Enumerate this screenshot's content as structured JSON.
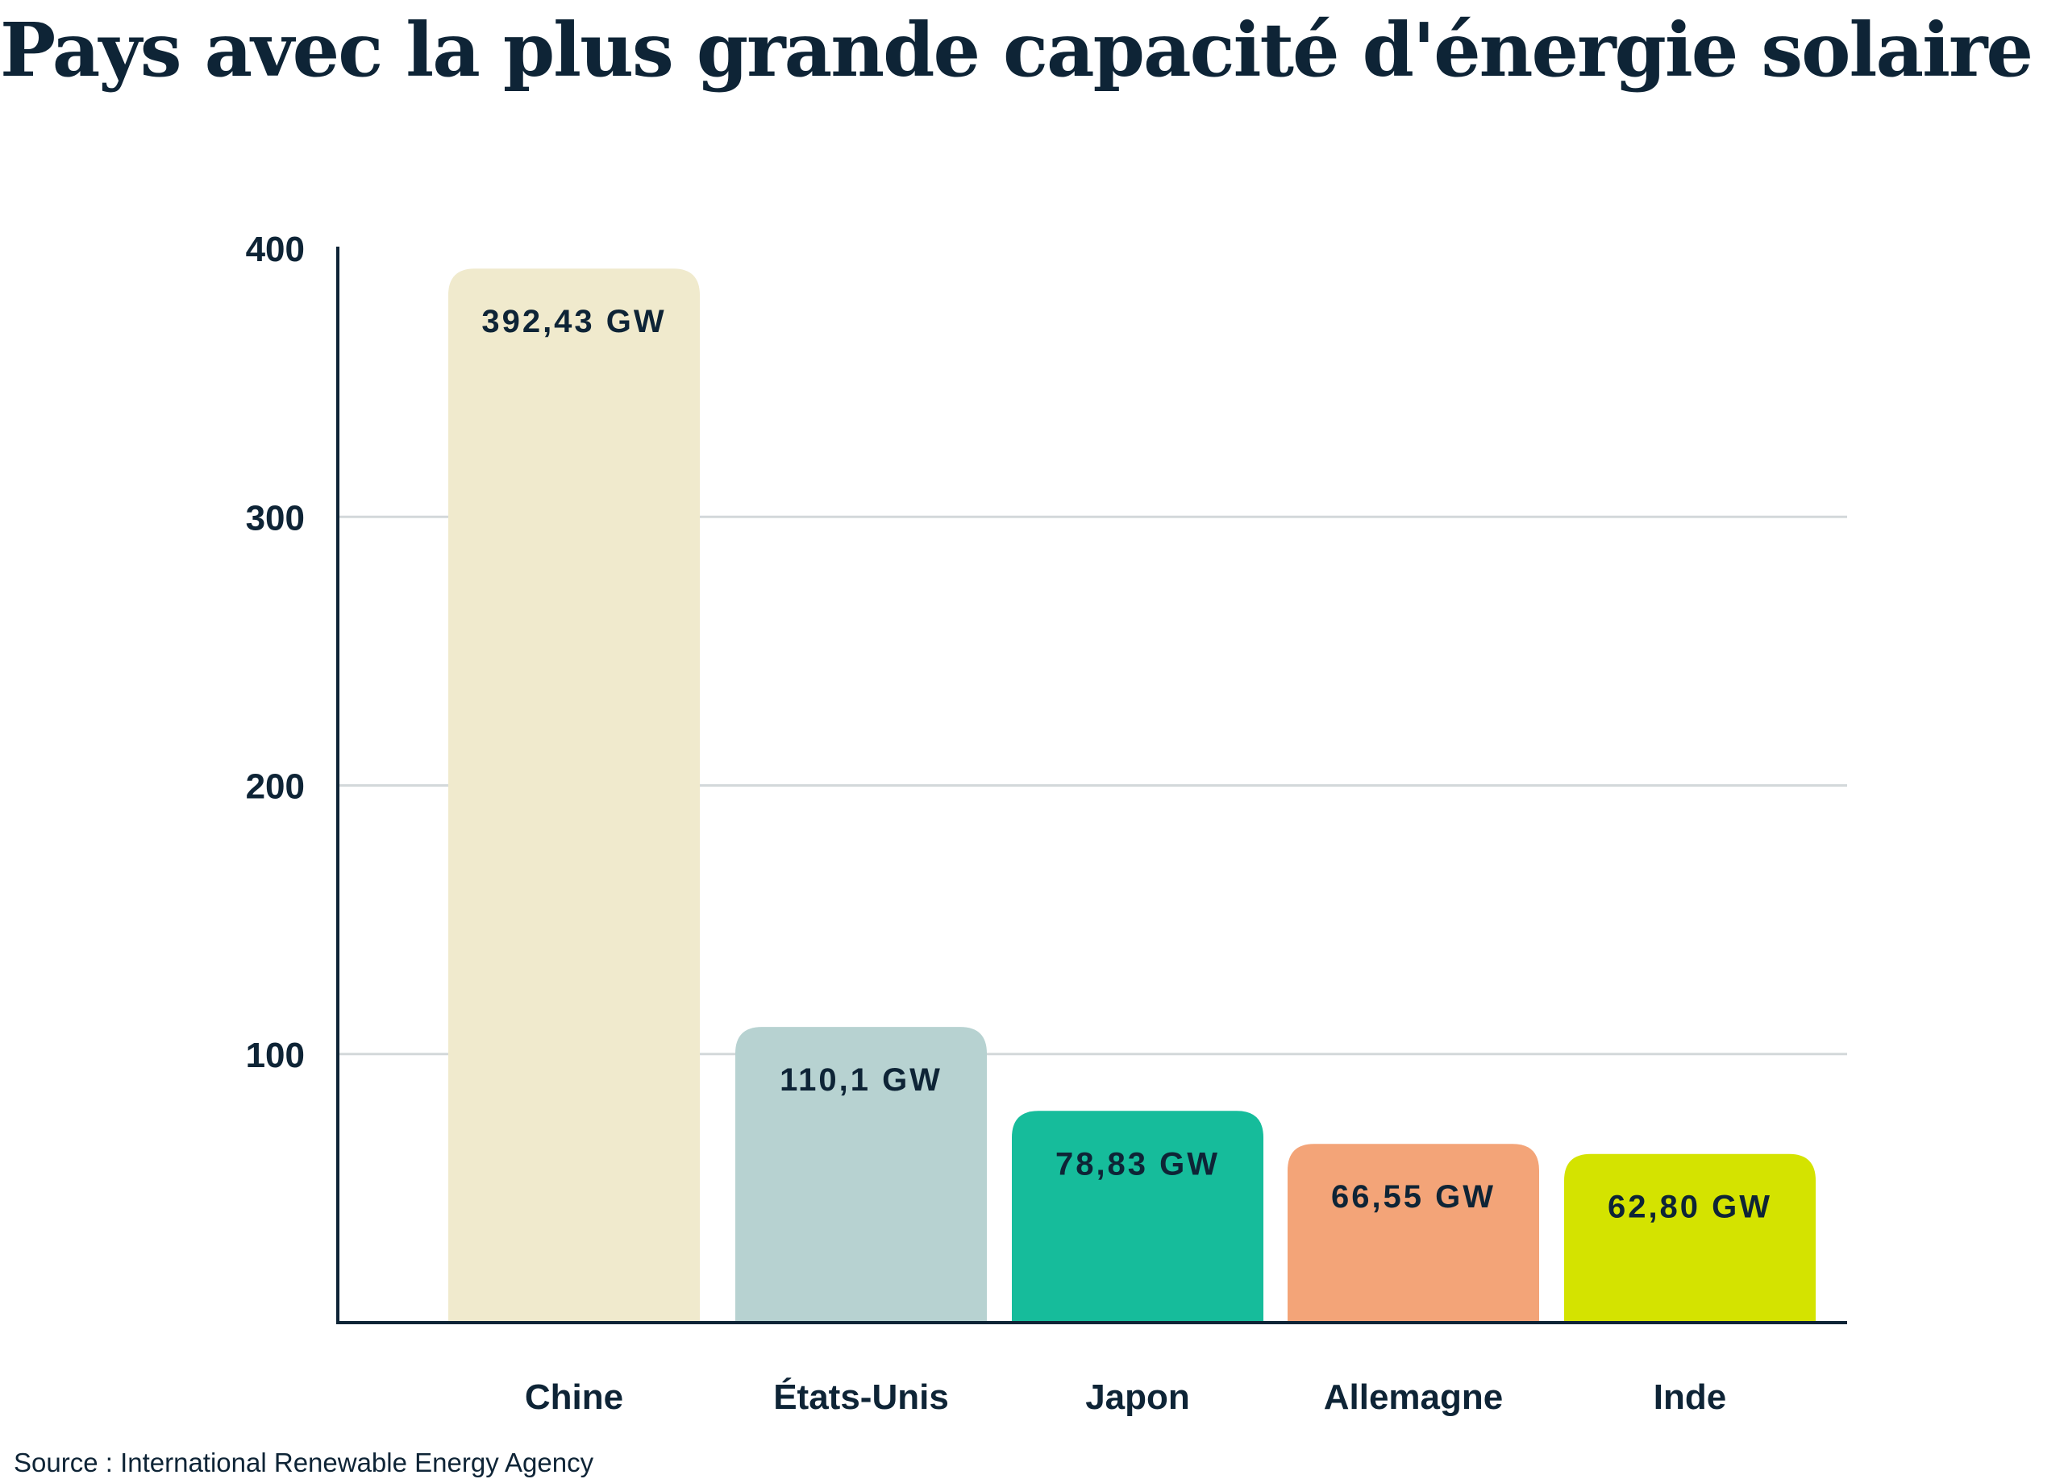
{
  "chart_data": {
    "type": "bar",
    "title": "Pays avec la plus grande capacité d'énergie solaire",
    "categories": [
      "Chine",
      "États-Unis",
      "Japon",
      "Allemagne",
      "Inde"
    ],
    "values": [
      392.43,
      110.1,
      78.83,
      66.55,
      62.8
    ],
    "data_labels": [
      "392,43 GW",
      "110,1 GW",
      "78,83 GW",
      "66,55 GW",
      "62,80 GW"
    ],
    "colors": [
      "#f0eacd",
      "#b7d2d1",
      "#16bc9b",
      "#f3a478",
      "#d4e300"
    ],
    "xlabel": "",
    "ylabel": "",
    "ylim": [
      0,
      400
    ],
    "yticks": [
      "100",
      "200",
      "300",
      "400"
    ],
    "ytick_values": [
      100,
      200,
      300,
      400
    ],
    "grid": true,
    "grid_color": "#d3d8da",
    "axis_color": "#0e2436",
    "source": "Source : International Renewable Energy Agency"
  }
}
